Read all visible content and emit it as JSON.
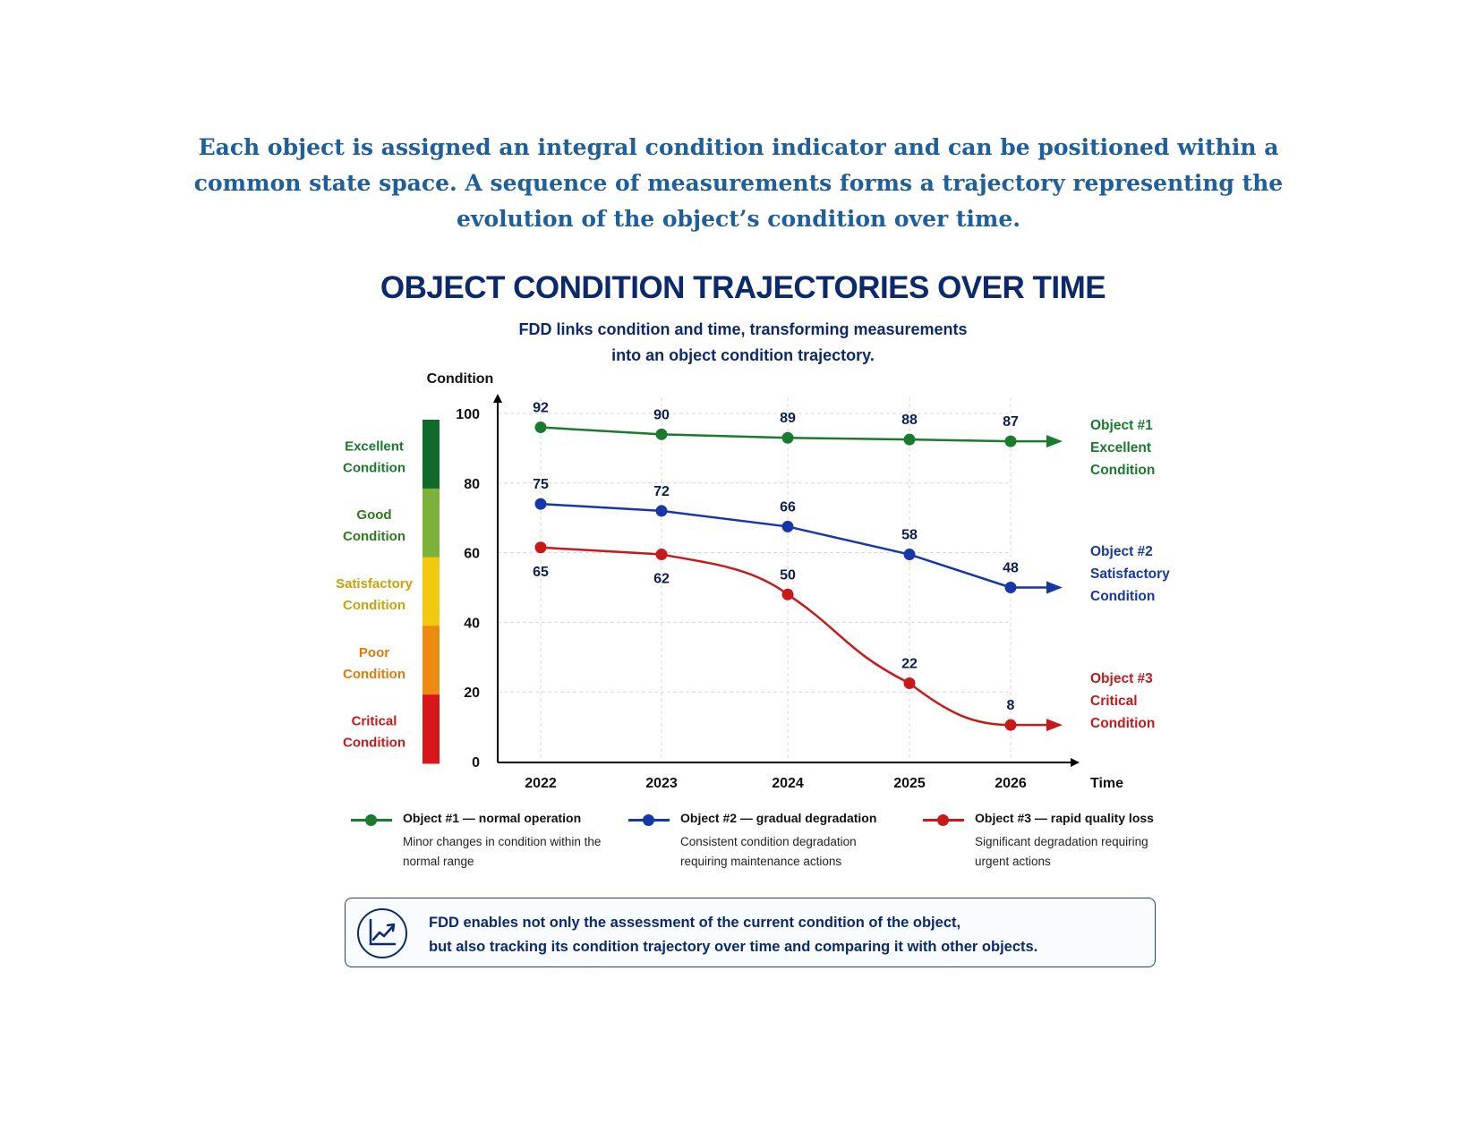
{
  "intro_text": "Each object is assigned an integral condition indicator and can be positioned within a common state space. A sequence of measurements forms a trajectory representing the evolution of the object’s condition over time.",
  "chart_data": {
    "type": "line",
    "title": "OBJECT CONDITION TRAJECTORIES OVER TIME",
    "subtitle_line1": "FDD links condition and time, transforming measurements",
    "subtitle_line2": "into an object condition trajectory.",
    "xlabel": "Time",
    "ylabel": "Condition",
    "categories": [
      "2022",
      "2023",
      "2024",
      "2025",
      "2026"
    ],
    "yticks": [
      0,
      20,
      40,
      60,
      80,
      100
    ],
    "ylim": [
      0,
      100
    ],
    "grid": true,
    "series": [
      {
        "name": "Object #1",
        "status_line1": "Excellent",
        "status_line2": "Condition",
        "color": "#1a7a2e",
        "values": [
          92,
          90,
          89,
          88,
          87
        ],
        "plot": [
          96,
          94,
          93,
          92.5,
          92
        ]
      },
      {
        "name": "Object #2",
        "status_line1": "Satisfactory",
        "status_line2": "Condition",
        "color": "#1537a8",
        "values": [
          75,
          72,
          66,
          58,
          48
        ],
        "plot": [
          74,
          72,
          67.5,
          59.5,
          50
        ]
      },
      {
        "name": "Object #3",
        "status_line1": "Critical",
        "status_line2": "Condition",
        "color": "#c8191a",
        "values": [
          65,
          62,
          50,
          22,
          8
        ],
        "plot": [
          61.5,
          59.5,
          48,
          22.5,
          10.5
        ]
      }
    ],
    "condition_bands": [
      {
        "line1": "Excellent",
        "line2": "Condition",
        "color": "#0f6a2c",
        "text_color": "#1a7a2e",
        "from": 80,
        "to": 100
      },
      {
        "line1": "Good",
        "line2": "Condition",
        "color": "#7cb23a",
        "text_color": "#2f7a1f",
        "from": 60,
        "to": 80
      },
      {
        "line1": "Satisfactory",
        "line2": "Condition",
        "color": "#f2c90f",
        "text_color": "#c9a20a",
        "from": 40,
        "to": 60
      },
      {
        "line1": "Poor",
        "line2": "Condition",
        "color": "#ec8a12",
        "text_color": "#e07a0e",
        "from": 20,
        "to": 40
      },
      {
        "line1": "Critical",
        "line2": "Condition",
        "color": "#d9161a",
        "text_color": "#c8191a",
        "from": 0,
        "to": 20
      }
    ]
  },
  "legend": [
    {
      "title": "Object #1 — normal operation",
      "desc": "Minor changes in condition within the normal range",
      "color": "#1a7a2e"
    },
    {
      "title": "Object #2 — gradual degradation",
      "desc": "Consistent condition degradation requiring maintenance actions",
      "color": "#1537a8"
    },
    {
      "title": "Object #3 — rapid quality loss",
      "desc": "Significant degradation requiring urgent actions",
      "color": "#c8191a"
    }
  ],
  "note": {
    "line1": "FDD enables not only the assessment of the current condition of the object,",
    "line2": "but also tracking its condition trajectory over time and comparing it with other objects.",
    "icon": "trend-chart-icon"
  }
}
